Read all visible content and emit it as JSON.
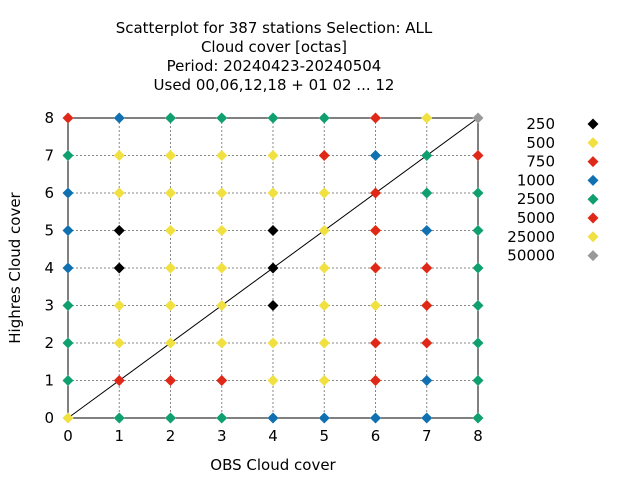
{
  "chart_data": {
    "type": "scatter",
    "title_lines": [
      "Scatterplot for  387 stations Selection: ALL",
      "Cloud cover [octas]",
      "Period: 20240423-20240504",
      "Used  00,06,12,18 + 01 02 ... 12"
    ],
    "xlabel": "OBS Cloud cover",
    "ylabel": "Highres Cloud cover",
    "xlim": [
      0,
      8
    ],
    "ylim": [
      0,
      8
    ],
    "xticks": [
      "0",
      "1",
      "2",
      "3",
      "4",
      "5",
      "6",
      "7",
      "8"
    ],
    "yticks": [
      "0",
      "1",
      "2",
      "3",
      "4",
      "5",
      "6",
      "7",
      "8"
    ],
    "grid": true,
    "diagonal_line": true,
    "legend_position": "right",
    "series": [
      {
        "name": "250",
        "color": "#000000",
        "points": [
          [
            1,
            5
          ],
          [
            1,
            4
          ],
          [
            4,
            5
          ],
          [
            4,
            4
          ],
          [
            4,
            3
          ]
        ]
      },
      {
        "name": "500",
        "color": "#f0e040",
        "points": [
          [
            0,
            0
          ],
          [
            1,
            7
          ],
          [
            2,
            7
          ],
          [
            3,
            7
          ],
          [
            4,
            7
          ],
          [
            1,
            6
          ],
          [
            2,
            6
          ],
          [
            3,
            6
          ],
          [
            4,
            6
          ],
          [
            5,
            6
          ],
          [
            2,
            5
          ],
          [
            3,
            5
          ],
          [
            5,
            5
          ],
          [
            6,
            5
          ],
          [
            2,
            4
          ],
          [
            3,
            4
          ],
          [
            5,
            4
          ],
          [
            6,
            4
          ],
          [
            1,
            3
          ],
          [
            2,
            3
          ],
          [
            3,
            3
          ],
          [
            5,
            3
          ],
          [
            6,
            3
          ],
          [
            7,
            3
          ],
          [
            1,
            2
          ],
          [
            2,
            2
          ],
          [
            3,
            2
          ],
          [
            4,
            2
          ],
          [
            5,
            2
          ],
          [
            4,
            1
          ],
          [
            5,
            1
          ],
          [
            6,
            1
          ],
          [
            7,
            8
          ]
        ]
      },
      {
        "name": "750",
        "color": "#e02818",
        "points": [
          [
            0,
            8
          ],
          [
            5,
            7
          ],
          [
            6,
            8
          ],
          [
            6,
            6
          ],
          [
            6,
            5
          ],
          [
            6,
            4
          ],
          [
            7,
            4
          ],
          [
            7,
            3
          ],
          [
            6,
            2
          ],
          [
            7,
            2
          ],
          [
            1,
            1
          ],
          [
            2,
            1
          ],
          [
            3,
            1
          ],
          [
            6,
            1
          ],
          [
            8,
            7
          ]
        ]
      },
      {
        "name": "1000",
        "color": "#1070b0",
        "points": [
          [
            1,
            8
          ],
          [
            0,
            6
          ],
          [
            0,
            5
          ],
          [
            0,
            4
          ],
          [
            6,
            7
          ],
          [
            7,
            5
          ],
          [
            7,
            1
          ],
          [
            4,
            0
          ],
          [
            5,
            0
          ],
          [
            6,
            0
          ],
          [
            7,
            0
          ]
        ]
      },
      {
        "name": "2500",
        "color": "#10a070",
        "points": [
          [
            2,
            8
          ],
          [
            3,
            8
          ],
          [
            4,
            8
          ],
          [
            5,
            8
          ],
          [
            0,
            7
          ],
          [
            7,
            7
          ],
          [
            7,
            6
          ],
          [
            8,
            6
          ],
          [
            8,
            5
          ],
          [
            8,
            4
          ],
          [
            0,
            3
          ],
          [
            8,
            3
          ],
          [
            0,
            2
          ],
          [
            8,
            2
          ],
          [
            0,
            1
          ],
          [
            8,
            1
          ],
          [
            1,
            0
          ],
          [
            2,
            0
          ],
          [
            3,
            0
          ],
          [
            8,
            0
          ]
        ]
      },
      {
        "name": "5000",
        "color": "#e02818",
        "points": []
      },
      {
        "name": "25000",
        "color": "#f0e040",
        "points": []
      },
      {
        "name": "50000",
        "color": "#999999",
        "points": [
          [
            8,
            8
          ]
        ]
      }
    ]
  }
}
